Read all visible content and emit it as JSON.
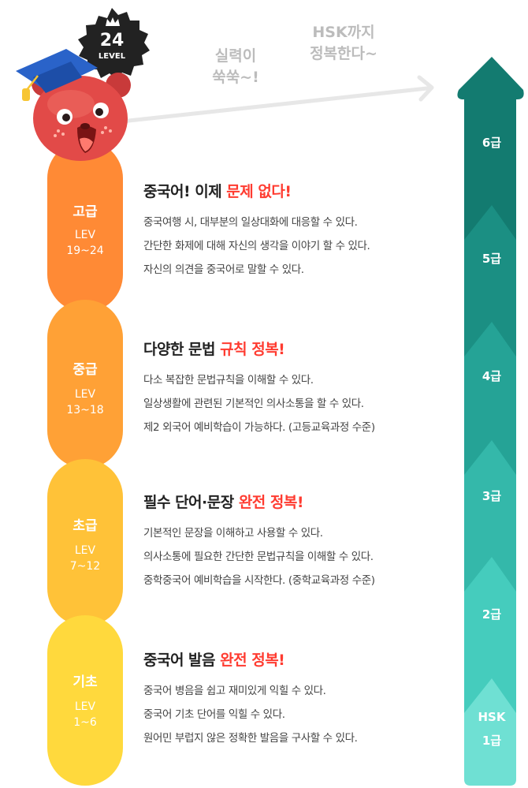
{
  "badge": {
    "number": "24",
    "label": "LEVEL"
  },
  "callouts": {
    "skill_line1": "실력이",
    "skill_line2": "쑥쑥~!",
    "hsk_line1": "HSK까지",
    "hsk_line2": "정복한다~"
  },
  "levels": [
    {
      "title": "고급",
      "lev": "LEV",
      "range": "19~24",
      "color": "#ff8a35",
      "heading_plain": "중국어! 이제 ",
      "heading_accent": "문제 없다!",
      "lines": [
        "중국여행 시, 대부분의 일상대화에 대응할 수 있다.",
        "간단한 화제에 대해  자신의 생각을 이야기 할 수 있다.",
        "자신의 의견을 중국어로 말할 수  있다."
      ]
    },
    {
      "title": "중급",
      "lev": "LEV",
      "range": "13~18",
      "color": "#ffa136",
      "heading_plain": "다양한 문법 ",
      "heading_accent": "규칙 정복!",
      "lines": [
        "다소 복잡한 문법규칙을 이해할 수 있다.",
        "일상생활에 관련된 기본적인 의사소통을 할 수 있다.",
        "제2 외국어 예비학습이 가능하다. (고등교육과정 수준)"
      ]
    },
    {
      "title": "초급",
      "lev": "LEV",
      "range": "7~12",
      "color": "#ffc238",
      "heading_plain": "필수 단어·문장 ",
      "heading_accent": "완전 정복!",
      "lines": [
        "기본적인 문장을 이해하고 사용할 수 있다.",
        "의사소통에 필요한 간단한 문법규칙을 이해할 수 있다.",
        "중학중국어 예비학습을 시작한다. (중학교육과정 수준)"
      ]
    },
    {
      "title": "기초",
      "lev": "LEV",
      "range": "1~6",
      "color": "#ffd93d",
      "heading_plain": "중국어 발음 ",
      "heading_accent": "완전 정복!",
      "lines": [
        "중국어 병음을 쉽고 재미있게 익힐 수 있다.",
        "중국어 기초 단어를 익힐 수 있다.",
        "원어민 부럽지 않은 정확한 발음을 구사할 수 있다."
      ]
    }
  ],
  "hsk_steps": [
    {
      "label": "6급",
      "color": "#137b70"
    },
    {
      "label": "5급",
      "color": "#1b8f83"
    },
    {
      "label": "4급",
      "color": "#25a396"
    },
    {
      "label": "3급",
      "color": "#34b8aa"
    },
    {
      "label": "2급",
      "color": "#45ccbd"
    },
    {
      "label": "HSK",
      "label2": "1급",
      "color": "#6fe0d3"
    }
  ],
  "colors": {
    "accent_red": "#ff3b30",
    "mascot_red": "#e24a48",
    "badge_dark": "#222222"
  },
  "icons": [
    "crown-icon",
    "graduation-cap-icon",
    "bear-mascot-icon",
    "arrow-right-icon"
  ]
}
